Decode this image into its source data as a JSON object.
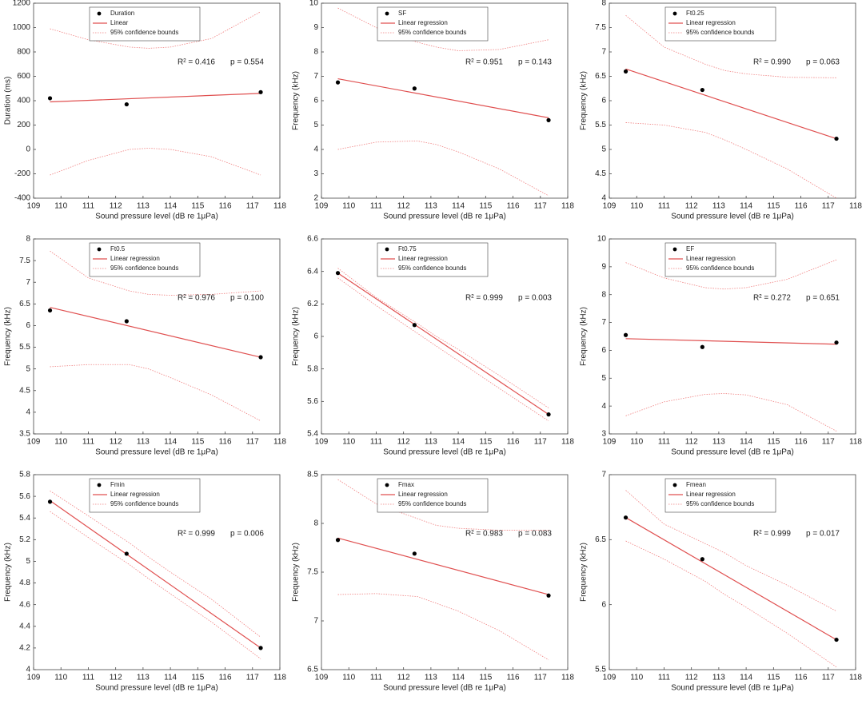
{
  "chart_data": [
    {
      "type": "scatter",
      "xlabel": "Sound pressure level (dB re 1μPa)",
      "ylabel": "Duration (ms)",
      "xlim": [
        109,
        118
      ],
      "xticks": [
        109,
        110,
        111,
        112,
        113,
        114,
        115,
        116,
        117,
        118
      ],
      "ylim": [
        -400,
        1200
      ],
      "yticks": [
        -400,
        -200,
        0,
        200,
        400,
        600,
        800,
        1000,
        1200
      ],
      "annotations": [
        "R² = 0.416",
        "p = 0.554"
      ],
      "series": [
        {
          "name": "Duration",
          "color": "#000000",
          "x": [
            109.6,
            112.4,
            117.3
          ],
          "values": [
            420,
            370,
            470
          ]
        },
        {
          "name": "Linear",
          "color": "#e05050",
          "x": [
            109.6,
            117.3
          ],
          "values": [
            390,
            460
          ]
        },
        {
          "name": "95% confidence bounds",
          "color": "#f08080",
          "x": [
            109.6,
            111,
            112.5,
            113.2,
            114,
            115.5,
            117.3
          ],
          "values": [
            990,
            900,
            840,
            830,
            840,
            910,
            1130
          ],
          "lower": [
            -210,
            -90,
            0,
            10,
            0,
            -60,
            -210
          ]
        }
      ]
    },
    {
      "type": "scatter",
      "xlabel": "Sound pressure level (dB re 1μPa)",
      "ylabel": "Frequency (kHz)",
      "xlim": [
        109,
        118
      ],
      "xticks": [
        109,
        110,
        111,
        112,
        113,
        114,
        115,
        116,
        117,
        118
      ],
      "ylim": [
        2,
        10
      ],
      "yticks": [
        2,
        3,
        4,
        5,
        6,
        7,
        8,
        9,
        10
      ],
      "annotations": [
        "R² = 0.951",
        "p = 0.143"
      ],
      "series": [
        {
          "name": "SF",
          "color": "#000000",
          "x": [
            109.6,
            112.4,
            117.3
          ],
          "values": [
            6.75,
            6.5,
            5.2
          ]
        },
        {
          "name": "Linear regression",
          "color": "#e05050",
          "x": [
            109.6,
            117.3
          ],
          "values": [
            6.9,
            5.3
          ]
        },
        {
          "name": "95% confidence bounds",
          "color": "#f08080",
          "x": [
            109.6,
            111,
            112.5,
            113.2,
            114,
            115.5,
            117.3
          ],
          "values": [
            9.8,
            9.0,
            8.4,
            8.2,
            8.05,
            8.1,
            8.5
          ],
          "lower": [
            4.0,
            4.3,
            4.35,
            4.2,
            3.9,
            3.2,
            2.1
          ]
        }
      ]
    },
    {
      "type": "scatter",
      "xlabel": "Sound pressure level (dB re 1μPa)",
      "ylabel": "Frequency (kHz)",
      "xlim": [
        109,
        118
      ],
      "xticks": [
        109,
        110,
        111,
        112,
        113,
        114,
        115,
        116,
        117,
        118
      ],
      "ylim": [
        4,
        8
      ],
      "yticks": [
        4,
        4.5,
        5,
        5.5,
        6,
        6.5,
        7,
        7.5,
        8
      ],
      "annotations": [
        "R² = 0.990",
        "p = 0.063"
      ],
      "series": [
        {
          "name": "Ft0.25",
          "color": "#000000",
          "x": [
            109.6,
            112.4,
            117.3
          ],
          "values": [
            6.6,
            6.22,
            5.22
          ]
        },
        {
          "name": "Linear regression",
          "color": "#e05050",
          "x": [
            109.6,
            117.3
          ],
          "values": [
            6.65,
            5.22
          ]
        },
        {
          "name": "95% confidence bounds",
          "color": "#f08080",
          "x": [
            109.6,
            111,
            112.5,
            113.2,
            114,
            115.5,
            117.3
          ],
          "values": [
            7.75,
            7.1,
            6.75,
            6.62,
            6.55,
            6.48,
            6.47
          ],
          "lower": [
            5.55,
            5.5,
            5.35,
            5.2,
            5.0,
            4.6,
            4.0
          ]
        }
      ]
    },
    {
      "type": "scatter",
      "xlabel": "Sound pressure level (dB re 1μPa)",
      "ylabel": "Frequency (kHz)",
      "xlim": [
        109,
        118
      ],
      "xticks": [
        109,
        110,
        111,
        112,
        113,
        114,
        115,
        116,
        117,
        118
      ],
      "ylim": [
        3.5,
        8
      ],
      "yticks": [
        3.5,
        4,
        4.5,
        5,
        5.5,
        6,
        6.5,
        7,
        7.5,
        8
      ],
      "annotations": [
        "R² = 0.976",
        "p = 0.100"
      ],
      "series": [
        {
          "name": "Ft0.5",
          "color": "#000000",
          "x": [
            109.6,
            112.4,
            117.3
          ],
          "values": [
            6.35,
            6.1,
            5.27
          ]
        },
        {
          "name": "Linear regression",
          "color": "#e05050",
          "x": [
            109.6,
            117.3
          ],
          "values": [
            6.42,
            5.27
          ]
        },
        {
          "name": "95% confidence bounds",
          "color": "#f08080",
          "x": [
            109.6,
            111,
            112.5,
            113.2,
            114,
            115.5,
            117.3
          ],
          "values": [
            7.72,
            7.1,
            6.8,
            6.72,
            6.7,
            6.72,
            6.8
          ],
          "lower": [
            5.05,
            5.1,
            5.1,
            5.0,
            4.8,
            4.4,
            3.8
          ]
        }
      ]
    },
    {
      "type": "scatter",
      "xlabel": "Sound pressure level (dB re 1μPa)",
      "ylabel": "Frequency (kHz)",
      "xlim": [
        109,
        118
      ],
      "xticks": [
        109,
        110,
        111,
        112,
        113,
        114,
        115,
        116,
        117,
        118
      ],
      "ylim": [
        5.4,
        6.6
      ],
      "yticks": [
        5.4,
        5.6,
        5.8,
        6,
        6.2,
        6.4,
        6.6
      ],
      "annotations": [
        "R² = 0.999",
        "p = 0.003"
      ],
      "series": [
        {
          "name": "Ft0.75",
          "color": "#000000",
          "x": [
            109.6,
            112.4,
            117.3
          ],
          "values": [
            6.39,
            6.07,
            5.52
          ]
        },
        {
          "name": "Linear regression",
          "color": "#e05050",
          "x": [
            109.6,
            117.3
          ],
          "values": [
            6.39,
            5.52
          ]
        },
        {
          "name": "95% confidence bounds",
          "color": "#f08080",
          "x": [
            109.6,
            111,
            112.5,
            113.2,
            114,
            115.5,
            117.3
          ],
          "values": [
            6.42,
            6.24,
            6.08,
            6.0,
            5.92,
            5.76,
            5.56
          ],
          "lower": [
            6.36,
            6.19,
            6.02,
            5.94,
            5.85,
            5.68,
            5.48
          ]
        }
      ]
    },
    {
      "type": "scatter",
      "xlabel": "Sound pressure level (dB re 1μPa)",
      "ylabel": "Frequency (kHz)",
      "xlim": [
        109,
        118
      ],
      "xticks": [
        109,
        110,
        111,
        112,
        113,
        114,
        115,
        116,
        117,
        118
      ],
      "ylim": [
        3,
        10
      ],
      "yticks": [
        3,
        4,
        5,
        6,
        7,
        8,
        9,
        10
      ],
      "annotations": [
        "R² = 0.272",
        "p = 0.651"
      ],
      "series": [
        {
          "name": "EF",
          "color": "#000000",
          "x": [
            109.6,
            112.4,
            117.3
          ],
          "values": [
            6.55,
            6.12,
            6.28
          ]
        },
        {
          "name": "Linear regression",
          "color": "#e05050",
          "x": [
            109.6,
            117.3
          ],
          "values": [
            6.42,
            6.22
          ]
        },
        {
          "name": "95% confidence bounds",
          "color": "#f08080",
          "x": [
            109.6,
            111,
            112.5,
            113.2,
            114,
            115.5,
            117.3
          ],
          "values": [
            9.15,
            8.6,
            8.25,
            8.2,
            8.25,
            8.55,
            9.25
          ],
          "lower": [
            3.65,
            4.15,
            4.42,
            4.45,
            4.4,
            4.05,
            3.1
          ]
        }
      ]
    },
    {
      "type": "scatter",
      "xlabel": "Sound pressure level (dB re 1μPa)",
      "ylabel": "Frequency (kHz)",
      "xlim": [
        109,
        118
      ],
      "xticks": [
        109,
        110,
        111,
        112,
        113,
        114,
        115,
        116,
        117,
        118
      ],
      "ylim": [
        4,
        5.8
      ],
      "yticks": [
        4,
        4.2,
        4.4,
        4.6,
        4.8,
        5,
        5.2,
        5.4,
        5.6,
        5.8
      ],
      "annotations": [
        "R² = 0.999",
        "p = 0.006"
      ],
      "series": [
        {
          "name": "Fmin",
          "color": "#000000",
          "x": [
            109.6,
            112.4,
            117.3
          ],
          "values": [
            5.55,
            5.07,
            4.2
          ]
        },
        {
          "name": "Linear regression",
          "color": "#e05050",
          "x": [
            109.6,
            117.3
          ],
          "values": [
            5.56,
            4.2
          ]
        },
        {
          "name": "95% confidence bounds",
          "color": "#f08080",
          "x": [
            109.6,
            111,
            112.5,
            113.2,
            114,
            115.5,
            117.3
          ],
          "values": [
            5.65,
            5.42,
            5.17,
            5.04,
            4.9,
            4.65,
            4.3
          ],
          "lower": [
            5.46,
            5.22,
            4.97,
            4.84,
            4.7,
            4.44,
            4.1
          ]
        }
      ]
    },
    {
      "type": "scatter",
      "xlabel": "Sound pressure level (dB re 1μPa)",
      "ylabel": "Frequency (kHz)",
      "xlim": [
        109,
        118
      ],
      "xticks": [
        109,
        110,
        111,
        112,
        113,
        114,
        115,
        116,
        117,
        118
      ],
      "ylim": [
        6.5,
        8.5
      ],
      "yticks": [
        6.5,
        7,
        7.5,
        8,
        8.5
      ],
      "annotations": [
        "R² = 0.983",
        "p = 0.083"
      ],
      "series": [
        {
          "name": "Fmax",
          "color": "#000000",
          "x": [
            109.6,
            112.4,
            117.3
          ],
          "values": [
            7.83,
            7.69,
            7.26
          ]
        },
        {
          "name": "Linear regression",
          "color": "#e05050",
          "x": [
            109.6,
            117.3
          ],
          "values": [
            7.85,
            7.27
          ]
        },
        {
          "name": "95% confidence bounds",
          "color": "#f08080",
          "x": [
            109.6,
            111,
            112.5,
            113.2,
            114,
            115.5,
            117.3
          ],
          "values": [
            8.45,
            8.2,
            8.05,
            7.98,
            7.95,
            7.93,
            7.93
          ],
          "lower": [
            7.27,
            7.28,
            7.25,
            7.18,
            7.1,
            6.9,
            6.6
          ]
        }
      ]
    },
    {
      "type": "scatter",
      "xlabel": "Sound pressure level (dB re 1μPa)",
      "ylabel": "Frequency (kHz)",
      "xlim": [
        109,
        118
      ],
      "xticks": [
        109,
        110,
        111,
        112,
        113,
        114,
        115,
        116,
        117,
        118
      ],
      "ylim": [
        5.5,
        7
      ],
      "yticks": [
        5.5,
        6,
        6.5,
        7
      ],
      "annotations": [
        "R² = 0.999",
        "p = 0.017"
      ],
      "series": [
        {
          "name": "Fmean",
          "color": "#000000",
          "x": [
            109.6,
            112.4,
            117.3
          ],
          "values": [
            6.67,
            6.35,
            5.73
          ]
        },
        {
          "name": "Linear regression",
          "color": "#e05050",
          "x": [
            109.6,
            117.3
          ],
          "values": [
            6.67,
            5.73
          ]
        },
        {
          "name": "95% confidence bounds",
          "color": "#f08080",
          "x": [
            109.6,
            111,
            112.5,
            113.2,
            114,
            115.5,
            117.3
          ],
          "values": [
            6.88,
            6.62,
            6.47,
            6.4,
            6.3,
            6.15,
            5.95
          ],
          "lower": [
            6.49,
            6.35,
            6.18,
            6.08,
            5.98,
            5.78,
            5.52
          ]
        }
      ]
    }
  ]
}
